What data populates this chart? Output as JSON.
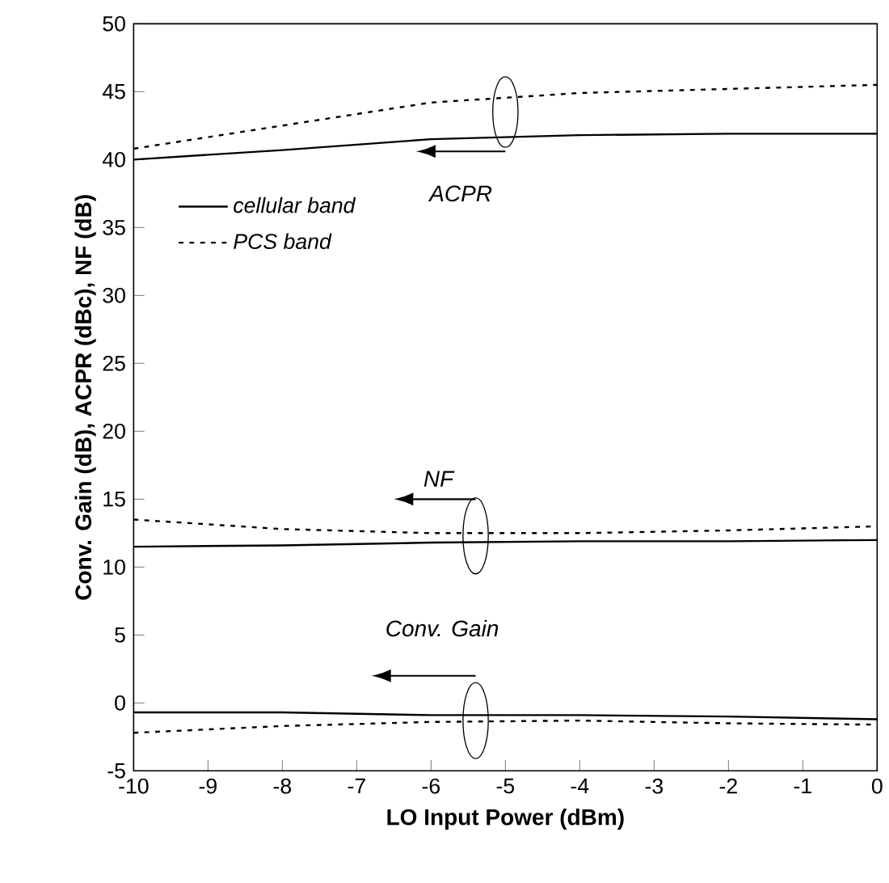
{
  "chart_data": {
    "type": "line",
    "xlabel": "LO Input Power (dBm)",
    "ylabel": "Conv. Gain (dB), ACPR (dBc), NF (dB)",
    "x": [
      -10,
      -8,
      -6,
      -4,
      -2,
      0
    ],
    "series": [
      {
        "name": "cellular band",
        "color": "#000000",
        "line_style": "solid",
        "values": [
          40.0,
          40.7,
          41.5,
          41.8,
          41.9,
          41.9
        ]
      },
      {
        "name": "PCS band",
        "color": "#000000",
        "line_style": "dotted",
        "values": [
          40.8,
          42.5,
          44.2,
          44.9,
          45.2,
          45.5
        ]
      },
      {
        "color": "#000000",
        "line_style": "solid",
        "values": [
          11.5,
          11.6,
          11.8,
          11.9,
          11.9,
          12.0
        ]
      },
      {
        "color": "#000000",
        "line_style": "dotted",
        "values": [
          13.5,
          12.8,
          12.5,
          12.5,
          12.7,
          13.0
        ]
      },
      {
        "color": "#000000",
        "line_style": "solid",
        "values": [
          -0.7,
          -0.7,
          -0.9,
          -0.9,
          -1.0,
          -1.2
        ]
      },
      {
        "color": "#000000",
        "line_style": "dotted",
        "values": [
          -2.2,
          -1.7,
          -1.4,
          -1.3,
          -1.5,
          -1.6
        ]
      }
    ],
    "annotations": [
      "ACPR",
      "NF",
      "Conv. Gain"
    ],
    "xlim": [
      -10,
      0
    ],
    "xticks": [
      -10,
      -9,
      -8,
      -7,
      -6,
      -5,
      -4,
      -3,
      -2,
      -1,
      0
    ],
    "ylim": [
      -5,
      50
    ],
    "yticks": [
      -5,
      0,
      5,
      10,
      15,
      20,
      25,
      30,
      35,
      40,
      45,
      50
    ],
    "grid": false,
    "legend": "left",
    "marker": "none"
  }
}
